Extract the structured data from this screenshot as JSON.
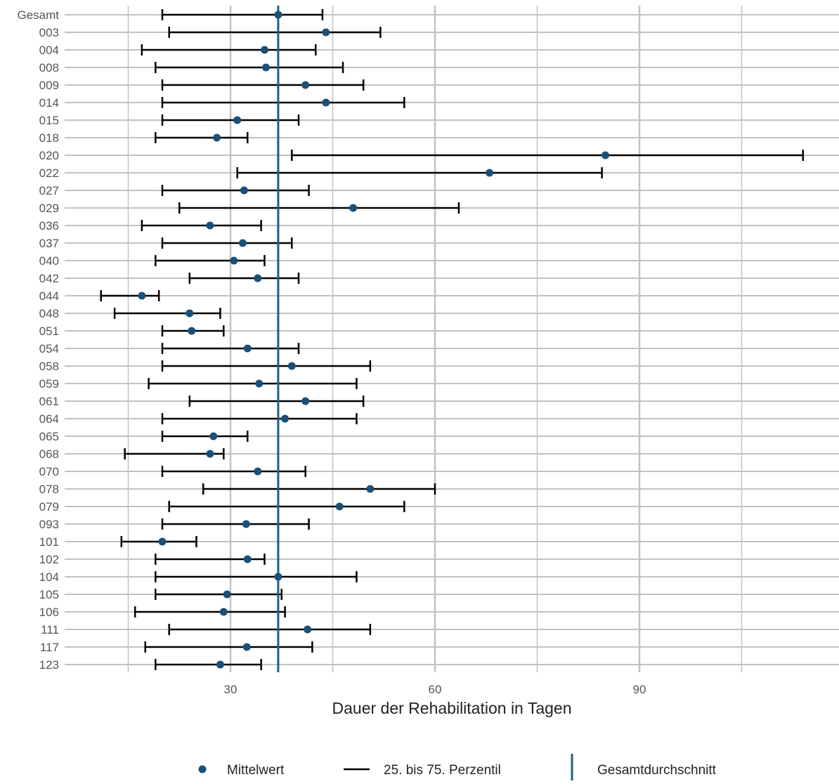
{
  "chart_data": {
    "type": "errorbar",
    "xlabel": "Dauer der Rehabilitation in Tagen",
    "ylabel": "",
    "xlim": [
      0,
      120
    ],
    "xticks": [
      30,
      60,
      90
    ],
    "grid": true,
    "legend_position": "bottom",
    "overall_mean": 37,
    "categories": [
      "Gesamt",
      "003",
      "004",
      "008",
      "009",
      "014",
      "015",
      "018",
      "020",
      "022",
      "027",
      "029",
      "036",
      "037",
      "040",
      "042",
      "044",
      "048",
      "051",
      "054",
      "058",
      "059",
      "061",
      "064",
      "065",
      "068",
      "070",
      "078",
      "079",
      "093",
      "101",
      "102",
      "104",
      "105",
      "106",
      "111",
      "117",
      "123"
    ],
    "mean": [
      37,
      44,
      35,
      35.2,
      41,
      44,
      31,
      28,
      85,
      68,
      32,
      48,
      27,
      31.8,
      30.5,
      34,
      17,
      24,
      24.3,
      32.5,
      39,
      34.2,
      41,
      38,
      27.5,
      27,
      34,
      50.5,
      46,
      32.3,
      20,
      32.5,
      37,
      29.5,
      29,
      41.3,
      32.4,
      28.5
    ],
    "p25": [
      20,
      21,
      17,
      19,
      20,
      20,
      20,
      19,
      39,
      31,
      20,
      22.5,
      17,
      20,
      19,
      24,
      11,
      13,
      20,
      20,
      20,
      18,
      24,
      20,
      20,
      14.5,
      20,
      26,
      21,
      20,
      14,
      19,
      19,
      19,
      16,
      21,
      17.5,
      19
    ],
    "p75": [
      43.5,
      52,
      42.5,
      46.5,
      49.5,
      55.5,
      40,
      32.5,
      114,
      84.5,
      41.5,
      63.5,
      34.5,
      39,
      35,
      40,
      19.5,
      28.5,
      29,
      40,
      50.5,
      48.5,
      49.5,
      48.5,
      32.5,
      29,
      41,
      60,
      55.5,
      41.5,
      25,
      35,
      48.5,
      37.5,
      38,
      50.5,
      42,
      34.5
    ],
    "legend": {
      "mean_label": "Mittelwert",
      "range_label": "25. bis 75. Perzentil",
      "overall_label": "Gesamtdurchschnitt"
    },
    "colors": {
      "mean_point": "#1b4f77",
      "overall_line": "#1f5f87",
      "range_line": "#000000",
      "grid": "#c2c2c2"
    }
  }
}
